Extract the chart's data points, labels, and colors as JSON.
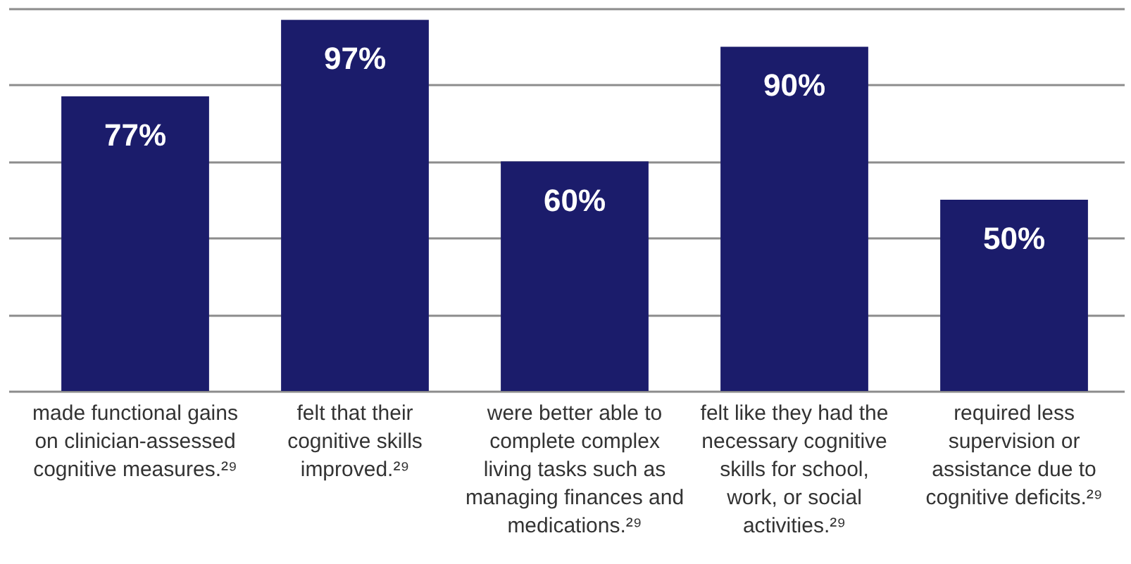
{
  "chart_data": {
    "type": "bar",
    "categories": [
      "made functional gains on clinician-assessed cognitive measures.²⁹",
      "felt that their cognitive skills improved.²⁹",
      "were better able to complete complex living tasks such as managing finances and medications.²⁹",
      "felt like they had the necessary cognitive skills for school, work, or social activities.²⁹",
      "required less supervision or assistance due to cognitive deficits.²⁹"
    ],
    "values": [
      77,
      97,
      60,
      90,
      50
    ],
    "color": "#1b1c6b",
    "value_labels": [
      "77%",
      "97%",
      "60%",
      "90%",
      "50%"
    ],
    "ylim": [
      0,
      100
    ],
    "yticks": [
      {
        "value": 0,
        "label": null
      },
      {
        "value": 20,
        "label": null
      },
      {
        "value": 40,
        "label": null
      },
      {
        "value": 60,
        "label": null
      },
      {
        "value": 80,
        "label": null
      },
      {
        "value": 100,
        "label": null
      }
    ],
    "grid": "y",
    "tick_labels": "x"
  }
}
